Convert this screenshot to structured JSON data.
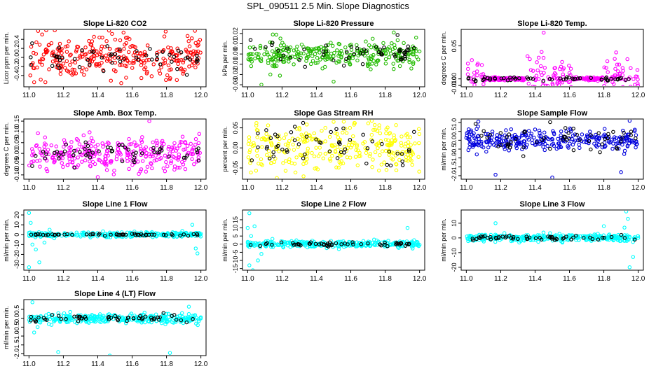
{
  "page": {
    "title": "SPL_090511  2.5 Min. Slope Diagnostics"
  },
  "chart_data": [
    {
      "type": "scatter",
      "title": "Slope Li-820 CO2",
      "xlabel": "",
      "ylabel": "Licor ppm per min.",
      "color": "#ff0000",
      "xlim": [
        10.97,
        12.03
      ],
      "ylim": [
        -0.65,
        0.62
      ],
      "xticks": [
        "11.0",
        "11.2",
        "11.4",
        "11.6",
        "11.8",
        "12.0"
      ],
      "yticks": [
        "-0.4",
        "-0.2",
        "0.0",
        "0.2",
        "0.4"
      ],
      "spread": 0.22,
      "ref_spread": 0.15,
      "outliers": [
        [
          11.15,
          0.6
        ],
        [
          11.03,
          -0.55
        ],
        [
          11.55,
          0.55
        ],
        [
          11.86,
          -0.5
        ]
      ]
    },
    {
      "type": "scatter",
      "title": "Slope Li-820 Pressure",
      "xlabel": "",
      "ylabel": "kPa per min.",
      "color": "#22bb00",
      "xlim": [
        10.97,
        12.03
      ],
      "ylim": [
        -0.032,
        0.024
      ],
      "xticks": [
        "11.0",
        "11.2",
        "11.4",
        "11.6",
        "11.8",
        "12.0"
      ],
      "yticks": [
        "-0.03",
        "-0.02",
        "-0.01",
        "0.00",
        "0.01",
        "0.02"
      ],
      "spread": 0.006,
      "ref_spread": 0.006,
      "outliers": [
        [
          11.08,
          -0.03
        ],
        [
          11.5,
          -0.027
        ],
        [
          11.85,
          0.021
        ],
        [
          11.98,
          0.016
        ]
      ]
    },
    {
      "type": "scatter",
      "title": "Slope Li-820 Temp.",
      "xlabel": "",
      "ylabel": "degrees C per min.",
      "color": "#ff00ff",
      "xlim": [
        10.97,
        12.03
      ],
      "ylim": [
        -0.012,
        0.075
      ],
      "xticks": [
        "11.0",
        "11.2",
        "11.4",
        "11.6",
        "11.8",
        "12.0"
      ],
      "yticks": [
        "-0.010",
        "0.00",
        "0.05"
      ],
      "spread": 0.016,
      "ref_spread": 0.0015,
      "outliers": [
        [
          11.45,
          0.07
        ],
        [
          11.98,
          -0.009
        ],
        [
          11.1,
          -0.008
        ]
      ]
    },
    {
      "type": "scatter",
      "title": "Slope Amb. Box Temp.",
      "xlabel": "",
      "ylabel": "degrees C per min.",
      "color": "#ff00ff",
      "xlim": [
        10.97,
        12.03
      ],
      "ylim": [
        -0.12,
        0.16
      ],
      "xticks": [
        "11.0",
        "11.2",
        "11.4",
        "11.6",
        "11.8",
        "12.0"
      ],
      "yticks": [
        "-0.10",
        "-0.05",
        "0.00",
        "0.05",
        "0.10",
        "0.15"
      ],
      "spread": 0.04,
      "ref_spread": 0.025,
      "outliers": [
        [
          11.7,
          0.15
        ],
        [
          11.4,
          -0.11
        ]
      ]
    },
    {
      "type": "scatter",
      "title": "Slope Gas Stream RH",
      "xlabel": "",
      "ylabel": "percent per min.",
      "color": "#ffff00",
      "xlim": [
        10.97,
        12.03
      ],
      "ylim": [
        -0.078,
        0.072
      ],
      "xticks": [
        "11.0",
        "11.2",
        "11.4",
        "11.6",
        "11.8",
        "12.0"
      ],
      "yticks": [
        "-0.05",
        "0.00",
        "0.05"
      ],
      "spread": 0.03,
      "ref_spread": 0.025,
      "outliers": [
        [
          11.17,
          -0.075
        ],
        [
          11.5,
          0.065
        ]
      ]
    },
    {
      "type": "scatter",
      "title": "Slope Sample Flow",
      "xlabel": "",
      "ylabel": "ml/min per min.",
      "color": "#0000dd",
      "xlim": [
        10.97,
        12.03
      ],
      "ylim": [
        -2.2,
        1.2
      ],
      "xticks": [
        "11.0",
        "11.2",
        "11.4",
        "11.6",
        "11.8",
        "12.0"
      ],
      "yticks": [
        "-2.0",
        "-1.5",
        "-1.0",
        "-0.5",
        "0.0",
        "0.5",
        "1.0"
      ],
      "spread": 0.28,
      "ref_spread": 0.4,
      "outliers": [
        [
          11.17,
          -1.95
        ],
        [
          11.5,
          -2.1
        ],
        [
          11.9,
          -1.8
        ],
        [
          11.07,
          1.05
        ],
        [
          11.95,
          1.1
        ]
      ]
    },
    {
      "type": "scatter",
      "title": "Slope Line 1 Flow",
      "xlabel": "",
      "ylabel": "ml/min per min.",
      "color": "#00ffff",
      "xlim": [
        10.97,
        12.03
      ],
      "ylim": [
        -36,
        25
      ],
      "xticks": [
        "11.0",
        "11.2",
        "11.4",
        "11.6",
        "11.8",
        "12.0"
      ],
      "yticks": [
        "-30",
        "-20",
        "-10",
        "0",
        "10",
        "20"
      ],
      "spread": 1.2,
      "ref_spread": 0.5,
      "outliers": [
        [
          11.0,
          22
        ],
        [
          11.01,
          12
        ],
        [
          11.02,
          -10
        ],
        [
          11.0,
          -33
        ],
        [
          11.04,
          -15
        ],
        [
          11.06,
          -28
        ],
        [
          11.09,
          -8
        ],
        [
          11.12,
          5
        ],
        [
          11.95,
          10
        ],
        [
          11.97,
          -14
        ],
        [
          11.98,
          -19
        ]
      ]
    },
    {
      "type": "scatter",
      "title": "Slope Line 2 Flow",
      "xlabel": "",
      "ylabel": "ml/min per min.",
      "color": "#00ffff",
      "xlim": [
        10.97,
        12.03
      ],
      "ylim": [
        -16,
        21
      ],
      "xticks": [
        "11.0",
        "11.2",
        "11.4",
        "11.6",
        "11.8",
        "12.0"
      ],
      "yticks": [
        "-15",
        "-10",
        "-5",
        "0",
        "5",
        "10",
        "15"
      ],
      "spread": 1.0,
      "ref_spread": 0.6,
      "outliers": [
        [
          11.01,
          19
        ],
        [
          11.0,
          10
        ],
        [
          11.02,
          5
        ],
        [
          11.04,
          11
        ],
        [
          11.01,
          -13
        ],
        [
          11.03,
          -16
        ],
        [
          11.06,
          -10
        ],
        [
          11.08,
          -6
        ],
        [
          11.93,
          10
        ]
      ]
    },
    {
      "type": "scatter",
      "title": "Slope Line 3 Flow",
      "xlabel": "",
      "ylabel": "ml/min per min.",
      "color": "#00ffff",
      "xlim": [
        10.97,
        12.03
      ],
      "ylim": [
        -22,
        19
      ],
      "xticks": [
        "11.0",
        "11.2",
        "11.4",
        "11.6",
        "11.8",
        "12.0"
      ],
      "yticks": [
        "-20",
        "-10",
        "0",
        "10"
      ],
      "spread": 1.2,
      "ref_spread": 0.8,
      "outliers": [
        [
          11.17,
          10
        ],
        [
          11.8,
          8
        ],
        [
          11.93,
          18
        ],
        [
          11.94,
          13
        ],
        [
          11.92,
          7
        ],
        [
          11.95,
          -20
        ],
        [
          11.97,
          -13
        ]
      ]
    },
    {
      "type": "scatter",
      "title": "Slope Line 4 (LT) Flow",
      "xlabel": "",
      "ylabel": "ml/min per min.",
      "color": "#00ffff",
      "xlim": [
        10.97,
        12.03
      ],
      "ylim": [
        -2.1,
        1.05
      ],
      "xticks": [
        "11.0",
        "11.2",
        "11.4",
        "11.6",
        "11.8",
        "12.0"
      ],
      "yticks": [
        "-2.0",
        "-1.5",
        "-1.0",
        "-0.5",
        "0.0",
        "0.5"
      ],
      "spread": 0.14,
      "ref_spread": 0.1,
      "outliers": [
        [
          11.02,
          0.9
        ],
        [
          11.03,
          -0.8
        ],
        [
          11.05,
          -0.5
        ],
        [
          11.17,
          -1.9
        ],
        [
          11.47,
          -2.1
        ],
        [
          11.82,
          -1.95
        ],
        [
          11.93,
          0.65
        ]
      ]
    }
  ]
}
